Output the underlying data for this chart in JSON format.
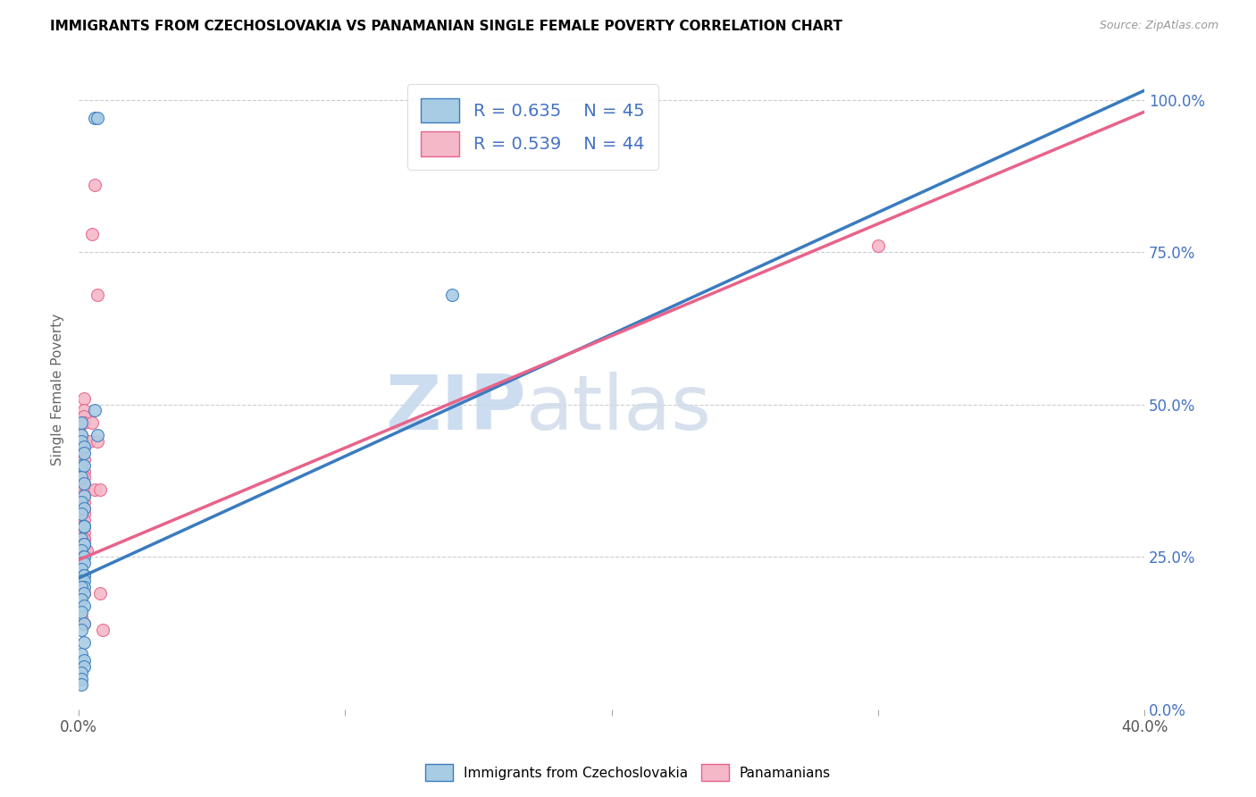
{
  "title": "IMMIGRANTS FROM CZECHOSLOVAKIA VS PANAMANIAN SINGLE FEMALE POVERTY CORRELATION CHART",
  "source": "Source: ZipAtlas.com",
  "ylabel": "Single Female Poverty",
  "legend_label_blue": "Immigrants from Czechoslovakia",
  "legend_label_pink": "Panamanians",
  "watermark_zip": "ZIP",
  "watermark_atlas": "atlas",
  "blue_color": "#a8cce4",
  "pink_color": "#f4b8c8",
  "blue_line_color": "#3a7bbf",
  "pink_line_color": "#e8638a",
  "blue_scatter": [
    [
      0.001,
      0.47
    ],
    [
      0.001,
      0.45
    ],
    [
      0.001,
      0.44
    ],
    [
      0.002,
      0.43
    ],
    [
      0.002,
      0.42
    ],
    [
      0.001,
      0.4
    ],
    [
      0.002,
      0.4
    ],
    [
      0.001,
      0.38
    ],
    [
      0.002,
      0.37
    ],
    [
      0.002,
      0.35
    ],
    [
      0.001,
      0.34
    ],
    [
      0.002,
      0.33
    ],
    [
      0.001,
      0.32
    ],
    [
      0.002,
      0.3
    ],
    [
      0.002,
      0.3
    ],
    [
      0.001,
      0.28
    ],
    [
      0.002,
      0.27
    ],
    [
      0.002,
      0.27
    ],
    [
      0.001,
      0.26
    ],
    [
      0.002,
      0.25
    ],
    [
      0.002,
      0.25
    ],
    [
      0.001,
      0.24
    ],
    [
      0.002,
      0.24
    ],
    [
      0.001,
      0.23
    ],
    [
      0.002,
      0.22
    ],
    [
      0.002,
      0.22
    ],
    [
      0.001,
      0.21
    ],
    [
      0.002,
      0.21
    ],
    [
      0.002,
      0.2
    ],
    [
      0.001,
      0.2
    ],
    [
      0.002,
      0.19
    ],
    [
      0.001,
      0.18
    ],
    [
      0.002,
      0.17
    ],
    [
      0.001,
      0.16
    ],
    [
      0.002,
      0.14
    ],
    [
      0.001,
      0.13
    ],
    [
      0.002,
      0.11
    ],
    [
      0.001,
      0.09
    ],
    [
      0.002,
      0.08
    ],
    [
      0.002,
      0.07
    ],
    [
      0.001,
      0.06
    ],
    [
      0.001,
      0.05
    ],
    [
      0.001,
      0.04
    ],
    [
      0.006,
      0.49
    ],
    [
      0.007,
      0.45
    ],
    [
      0.14,
      0.68
    ],
    [
      0.006,
      0.97
    ],
    [
      0.007,
      0.97
    ]
  ],
  "pink_scatter": [
    [
      0.002,
      0.51
    ],
    [
      0.002,
      0.49
    ],
    [
      0.002,
      0.48
    ],
    [
      0.002,
      0.47
    ],
    [
      0.001,
      0.45
    ],
    [
      0.002,
      0.44
    ],
    [
      0.002,
      0.43
    ],
    [
      0.001,
      0.42
    ],
    [
      0.002,
      0.41
    ],
    [
      0.002,
      0.39
    ],
    [
      0.001,
      0.39
    ],
    [
      0.002,
      0.38
    ],
    [
      0.002,
      0.37
    ],
    [
      0.002,
      0.36
    ],
    [
      0.001,
      0.35
    ],
    [
      0.002,
      0.35
    ],
    [
      0.002,
      0.34
    ],
    [
      0.001,
      0.33
    ],
    [
      0.002,
      0.33
    ],
    [
      0.002,
      0.32
    ],
    [
      0.001,
      0.31
    ],
    [
      0.002,
      0.31
    ],
    [
      0.001,
      0.3
    ],
    [
      0.002,
      0.3
    ],
    [
      0.002,
      0.29
    ],
    [
      0.001,
      0.28
    ],
    [
      0.002,
      0.28
    ],
    [
      0.002,
      0.28
    ],
    [
      0.001,
      0.27
    ],
    [
      0.002,
      0.27
    ],
    [
      0.001,
      0.26
    ],
    [
      0.002,
      0.26
    ],
    [
      0.003,
      0.26
    ],
    [
      0.001,
      0.21
    ],
    [
      0.002,
      0.19
    ],
    [
      0.001,
      0.15
    ],
    [
      0.002,
      0.14
    ],
    [
      0.005,
      0.47
    ],
    [
      0.004,
      0.44
    ],
    [
      0.007,
      0.44
    ],
    [
      0.006,
      0.36
    ],
    [
      0.008,
      0.36
    ],
    [
      0.008,
      0.19
    ],
    [
      0.009,
      0.13
    ],
    [
      0.3,
      0.76
    ],
    [
      0.006,
      0.86
    ],
    [
      0.005,
      0.78
    ],
    [
      0.007,
      0.68
    ]
  ],
  "xlim": [
    0.0,
    0.4
  ],
  "ylim": [
    0.0,
    1.05
  ],
  "blue_line_points": [
    [
      0.0,
      0.215
    ],
    [
      0.4,
      1.015
    ]
  ],
  "pink_line_points": [
    [
      0.0,
      0.245
    ],
    [
      0.4,
      0.98
    ]
  ]
}
